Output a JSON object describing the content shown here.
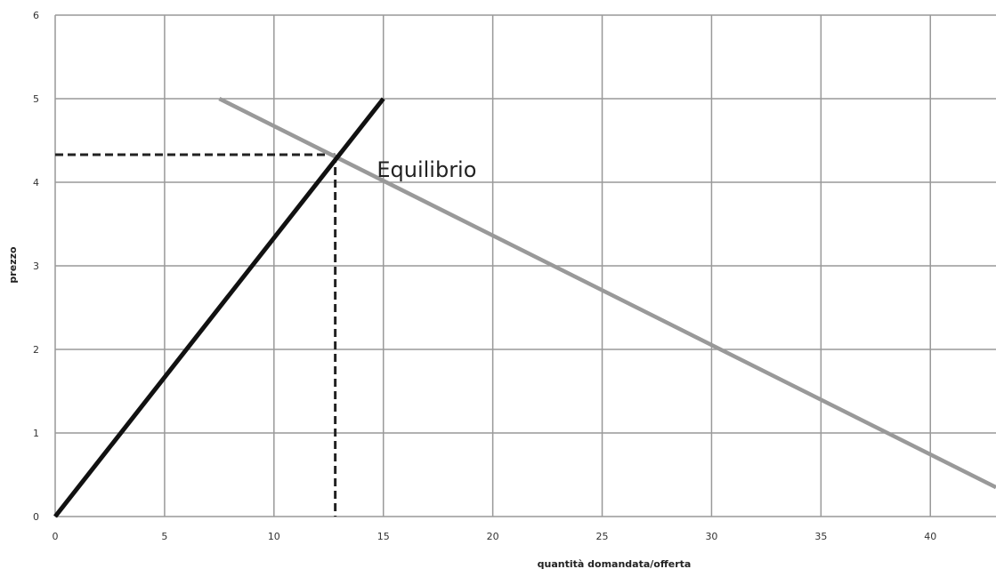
{
  "chart_data": {
    "type": "line",
    "title": "",
    "xlabel": "quantità domandata/offerta",
    "ylabel": "prezzo",
    "xlim": [
      0,
      43
    ],
    "ylim": [
      0,
      6
    ],
    "x_ticks": [
      0,
      5,
      10,
      15,
      20,
      25,
      30,
      35,
      40
    ],
    "y_ticks": [
      0,
      1,
      2,
      3,
      4,
      5,
      6
    ],
    "grid": true,
    "legend": "none",
    "series": [
      {
        "x": [
          0,
          15
        ],
        "y": [
          0,
          5
        ],
        "color": "#111111"
      },
      {
        "x": [
          7.5,
          43
        ],
        "y": [
          5,
          0.35
        ],
        "color": "#999999"
      }
    ],
    "equilibrium": {
      "x": 12.8,
      "y": 4.33,
      "color": "#222222"
    },
    "annotations": [
      {
        "text": "Equilibrio",
        "x": 14.7,
        "y": 4.15
      }
    ]
  }
}
